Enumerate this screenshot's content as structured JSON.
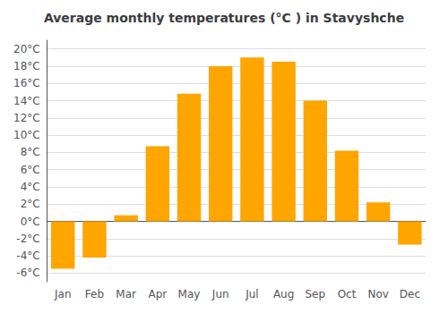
{
  "chart_data": {
    "type": "bar",
    "title": "Average monthly temperatures (°C ) in Stavyshche",
    "categories": [
      "Jan",
      "Feb",
      "Mar",
      "Apr",
      "May",
      "Jun",
      "Jul",
      "Aug",
      "Sep",
      "Oct",
      "Nov",
      "Dec"
    ],
    "values": [
      -5.5,
      -4.2,
      0.7,
      8.7,
      14.8,
      18.0,
      19.0,
      18.5,
      14.0,
      8.2,
      2.2,
      -2.7
    ],
    "color": "#FFA500",
    "ylim": [
      -7,
      21
    ],
    "yticks": [
      {
        "value": -6,
        "label": "-6°C"
      },
      {
        "value": -4,
        "label": "-4°C"
      },
      {
        "value": -2,
        "label": "-2°C"
      },
      {
        "value": 0,
        "label": "0°C"
      },
      {
        "value": 2,
        "label": "2°C"
      },
      {
        "value": 4,
        "label": "4°C"
      },
      {
        "value": 6,
        "label": "6°C"
      },
      {
        "value": 8,
        "label": "8°C"
      },
      {
        "value": 10,
        "label": "10°C"
      },
      {
        "value": 12,
        "label": "12°C"
      },
      {
        "value": 14,
        "label": "14°C"
      },
      {
        "value": 16,
        "label": "16°C"
      },
      {
        "value": 18,
        "label": "18°C"
      },
      {
        "value": 20,
        "label": "20°C"
      }
    ],
    "grid": true
  }
}
